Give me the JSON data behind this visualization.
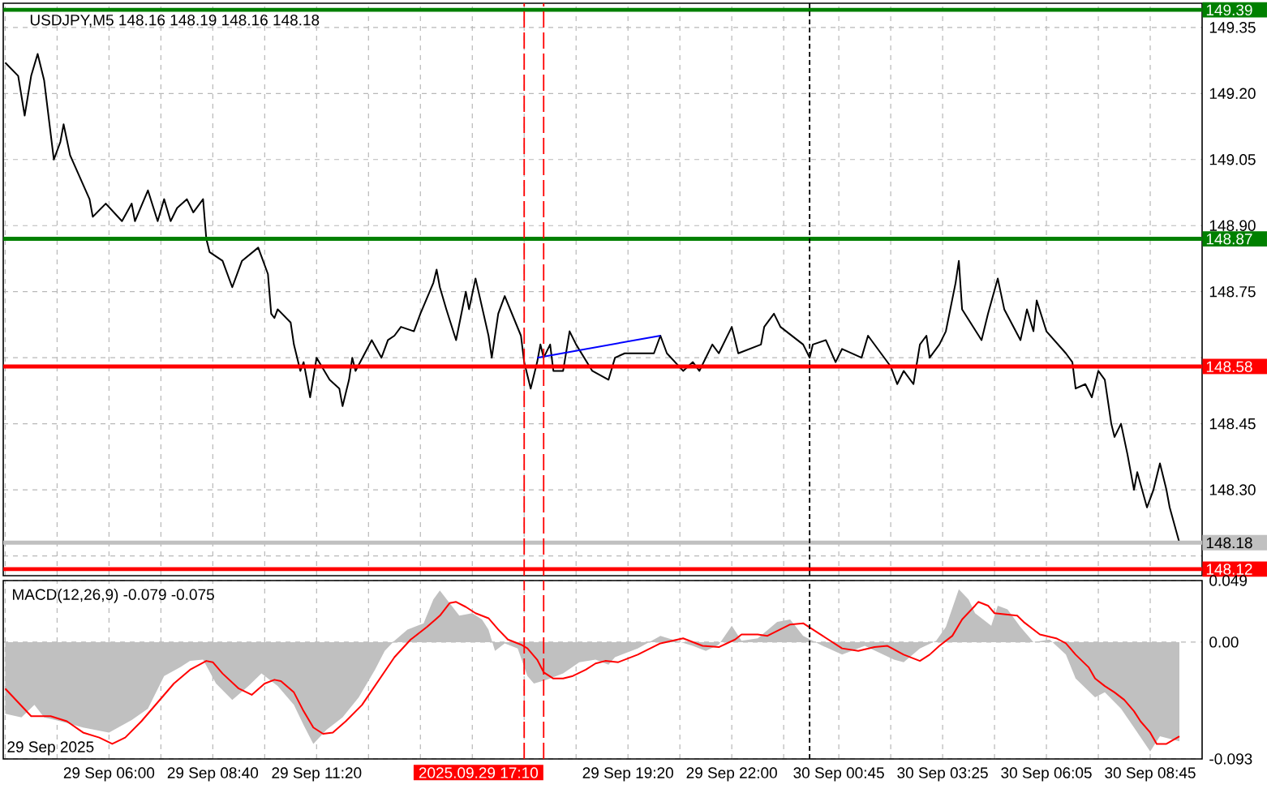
{
  "chart_data": [
    {
      "type": "line",
      "title": "USDJPY,M5 148.16 148.19 148.16 148.18",
      "x": [
        "2025-09-29T03:20",
        "2025-09-29T03:40",
        "2025-09-29T03:50",
        "2025-09-29T04:00",
        "2025-09-29T04:10",
        "2025-09-29T04:20",
        "2025-09-29T04:35",
        "2025-09-29T04:45",
        "2025-09-29T04:50",
        "2025-09-29T05:00",
        "2025-09-29T05:30",
        "2025-09-29T05:35",
        "2025-09-29T05:55",
        "2025-09-29T06:20",
        "2025-09-29T06:35",
        "2025-09-29T06:40",
        "2025-09-29T07:00",
        "2025-09-29T07:15",
        "2025-09-29T07:25",
        "2025-09-29T07:35",
        "2025-09-29T07:45",
        "2025-09-29T08:00",
        "2025-09-29T08:10",
        "2025-09-29T08:25",
        "2025-09-29T08:30",
        "2025-09-29T08:35",
        "2025-09-29T08:55",
        "2025-09-29T09:10",
        "2025-09-29T09:25",
        "2025-09-29T09:50",
        "2025-09-29T10:05",
        "2025-09-29T10:10",
        "2025-09-29T10:15",
        "2025-09-29T10:20",
        "2025-09-29T10:40",
        "2025-09-29T10:45",
        "2025-09-29T10:55",
        "2025-09-29T11:00",
        "2025-09-29T11:05",
        "2025-09-29T11:10",
        "2025-09-29T11:20",
        "2025-09-29T11:40",
        "2025-09-29T11:55",
        "2025-09-29T12:00",
        "2025-09-29T12:10",
        "2025-09-29T12:15",
        "2025-09-29T12:20",
        "2025-09-29T12:45",
        "2025-09-29T13:00",
        "2025-09-29T13:10",
        "2025-09-29T13:20",
        "2025-09-29T13:30",
        "2025-09-29T13:50",
        "2025-09-29T14:00",
        "2025-09-29T14:20",
        "2025-09-29T14:25",
        "2025-09-29T14:30",
        "2025-09-29T14:40",
        "2025-09-29T14:55",
        "2025-09-29T15:10",
        "2025-09-29T15:15",
        "2025-09-29T15:25",
        "2025-09-29T15:45",
        "2025-09-29T15:50",
        "2025-09-29T16:00",
        "2025-09-29T16:10",
        "2025-09-29T16:35",
        "2025-09-29T16:40",
        "2025-09-29T16:50",
        "2025-09-29T17:00",
        "2025-09-29T17:05",
        "2025-09-29T17:10",
        "2025-09-29T17:20",
        "2025-09-29T17:25",
        "2025-09-29T17:40",
        "2025-09-29T17:50",
        "2025-09-29T18:00",
        "2025-09-29T18:25",
        "2025-09-29T18:50",
        "2025-09-29T19:00",
        "2025-09-29T19:15",
        "2025-09-29T20:00",
        "2025-09-29T20:10",
        "2025-09-29T20:20",
        "2025-09-29T20:45",
        "2025-09-29T21:00",
        "2025-09-29T21:10",
        "2025-09-29T21:30",
        "2025-09-29T21:40",
        "2025-09-29T22:00",
        "2025-09-29T22:10",
        "2025-09-29T22:45",
        "2025-09-29T22:50",
        "2025-09-29T23:05",
        "2025-09-29T23:15",
        "2025-09-29T23:50",
        "2025-09-30T00:00",
        "2025-09-30T00:05",
        "2025-09-30T00:25",
        "2025-09-30T00:40",
        "2025-09-30T00:50",
        "2025-09-30T01:20",
        "2025-09-30T01:30",
        "2025-09-30T01:50",
        "2025-09-30T02:05",
        "2025-09-30T02:15",
        "2025-09-30T02:25",
        "2025-09-30T02:40",
        "2025-09-30T02:50",
        "2025-09-30T03:00",
        "2025-09-30T03:05",
        "2025-09-30T03:20",
        "2025-09-30T03:30",
        "2025-09-30T03:45",
        "2025-09-30T03:50",
        "2025-09-30T03:55",
        "2025-09-30T04:25",
        "2025-09-30T04:35",
        "2025-09-30T04:50",
        "2025-09-30T05:00",
        "2025-09-30T05:25",
        "2025-09-30T05:35",
        "2025-09-30T05:45",
        "2025-09-30T05:50",
        "2025-09-30T06:05",
        "2025-09-30T06:35",
        "2025-09-30T06:45",
        "2025-09-30T06:50",
        "2025-09-30T07:05",
        "2025-09-30T07:15",
        "2025-09-30T07:25",
        "2025-09-30T07:35",
        "2025-09-30T07:45",
        "2025-09-30T07:50",
        "2025-09-30T08:00",
        "2025-09-30T08:10",
        "2025-09-30T08:20",
        "2025-09-30T08:25",
        "2025-09-30T08:40",
        "2025-09-30T08:50",
        "2025-09-30T09:00",
        "2025-09-30T09:10",
        "2025-09-30T09:15",
        "2025-09-30T09:30"
      ],
      "series": [
        {
          "color": "#000000",
          "values": [
            149.27,
            149.24,
            149.15,
            149.24,
            149.29,
            149.23,
            149.05,
            149.09,
            149.13,
            149.06,
            148.96,
            148.92,
            148.95,
            148.91,
            148.95,
            148.91,
            148.98,
            148.91,
            148.96,
            148.91,
            148.94,
            148.96,
            148.93,
            148.96,
            148.87,
            148.84,
            148.82,
            148.76,
            148.82,
            148.85,
            148.79,
            148.7,
            148.69,
            148.71,
            148.68,
            148.63,
            148.57,
            148.59,
            148.55,
            148.51,
            148.6,
            148.55,
            148.53,
            148.49,
            148.55,
            148.6,
            148.57,
            148.64,
            148.6,
            148.64,
            148.65,
            148.67,
            148.66,
            148.7,
            148.77,
            148.8,
            148.76,
            148.71,
            148.64,
            148.75,
            148.71,
            148.78,
            148.65,
            148.6,
            148.7,
            148.74,
            148.65,
            148.59,
            148.53,
            148.59,
            148.63,
            148.6,
            148.63,
            148.57,
            148.57,
            148.66,
            148.63,
            148.57,
            148.55,
            148.6,
            148.61,
            148.61,
            148.65,
            148.61,
            148.57,
            148.59,
            148.57,
            148.63,
            148.61,
            148.67,
            148.61,
            148.63,
            148.67,
            148.7,
            148.67,
            148.63,
            148.6,
            148.63,
            148.64,
            148.59,
            148.62,
            148.6,
            148.65,
            148.61,
            148.58,
            148.54,
            148.57,
            148.54,
            148.63,
            148.65,
            148.6,
            148.63,
            148.66,
            148.77,
            148.82,
            148.71,
            148.64,
            148.7,
            148.78,
            148.71,
            148.64,
            148.71,
            148.66,
            148.73,
            148.66,
            148.61,
            148.59,
            148.53,
            148.54,
            148.51,
            148.57,
            148.55,
            148.45,
            148.42,
            148.45,
            148.38,
            148.3,
            148.34,
            148.26,
            148.3,
            148.36,
            148.3,
            148.26,
            148.18
          ]
        },
        {
          "color": "#0000ff",
          "x": [
            "2025-09-29T17:00",
            "2025-09-29T20:10"
          ],
          "values": [
            148.6,
            148.65
          ]
        }
      ],
      "xlim": [
        "2025-09-29T03:17",
        "2025-09-30T10:05"
      ],
      "xticks": [
        "2025-09-29T03:20",
        "2025-09-29T04:40",
        "2025-09-29T06:00",
        "2025-09-29T07:20",
        "2025-09-29T08:40",
        "2025-09-29T10:00",
        "2025-09-29T11:20",
        "2025-09-29T12:40",
        "2025-09-29T14:00",
        "2025-09-29T15:20",
        "2025-09-29T16:40",
        "2025-09-29T18:00",
        "2025-09-29T19:20",
        "2025-09-29T20:40",
        "2025-09-29T22:00",
        "2025-09-29T23:20",
        "2025-09-30T00:45",
        "2025-09-30T02:05",
        "2025-09-30T03:25",
        "2025-09-30T04:45",
        "2025-09-30T06:05",
        "2025-09-30T07:25",
        "2025-09-30T08:45"
      ],
      "ylim": [
        148.105,
        149.405
      ],
      "yticks": [
        149.35,
        {
          "value": 149.2,
          "label": "149.20"
        },
        149.05,
        {
          "value": 148.9,
          "label": "148.90"
        },
        148.75,
        {
          "value": 148.6,
          "label": null
        },
        148.45,
        {
          "value": 148.3,
          "label": "148.30"
        },
        {
          "value": 148.15,
          "label": null
        }
      ],
      "grid": true,
      "tick_labels": "y",
      "ref_lines": [
        {
          "axis": "y",
          "value": 149.39,
          "label": "149.39",
          "color": "#008000"
        },
        {
          "axis": "y",
          "value": 148.87,
          "label": "148.87",
          "color": "#008000"
        },
        {
          "axis": "y",
          "value": 148.58,
          "label": "148.58",
          "color": "#ff0000"
        },
        {
          "axis": "y",
          "value": 148.18,
          "label": "148.18",
          "color": "#c0c0c0"
        },
        {
          "axis": "y",
          "value": 148.12,
          "label": "148.12",
          "color": "#ff0000"
        },
        {
          "axis": "x",
          "value": "2025-09-29T16:40",
          "color": "#ff0000",
          "line_style": "dashed"
        },
        {
          "axis": "x",
          "value": "2025-09-29T17:10",
          "color": "#ff0000",
          "line_style": "dashed"
        },
        {
          "axis": "x",
          "value": "2025-09-30T00:00",
          "color": "#000000",
          "line_style": "dotted"
        }
      ]
    },
    {
      "type": "area",
      "title": "MACD(12,26,9) -0.079 -0.075",
      "annotations": [
        "29 Sep 2025"
      ],
      "x": [
        "2025-09-29T03:20",
        "2025-09-29T03:45",
        "2025-09-29T04:05",
        "2025-09-29T04:20",
        "2025-09-29T04:45",
        "2025-09-29T05:20",
        "2025-09-29T06:00",
        "2025-09-29T06:35",
        "2025-09-29T07:00",
        "2025-09-29T07:25",
        "2025-09-29T07:50",
        "2025-09-29T08:05",
        "2025-09-29T08:25",
        "2025-09-29T08:45",
        "2025-09-29T09:10",
        "2025-09-29T09:35",
        "2025-09-29T09:55",
        "2025-09-29T10:20",
        "2025-09-29T10:45",
        "2025-09-29T11:00",
        "2025-09-29T11:15",
        "2025-09-29T11:35",
        "2025-09-29T12:00",
        "2025-09-29T12:25",
        "2025-09-29T12:50",
        "2025-09-29T13:05",
        "2025-09-29T13:20",
        "2025-09-29T13:40",
        "2025-09-29T14:05",
        "2025-09-29T14:20",
        "2025-09-29T14:30",
        "2025-09-29T14:45",
        "2025-09-29T15:00",
        "2025-09-29T15:20",
        "2025-09-29T15:35",
        "2025-09-29T15:45",
        "2025-09-29T15:55",
        "2025-09-29T16:10",
        "2025-09-29T16:30",
        "2025-09-29T16:45",
        "2025-09-29T16:55",
        "2025-09-29T17:15",
        "2025-09-29T17:40",
        "2025-09-29T18:05",
        "2025-09-29T18:30",
        "2025-09-29T18:50",
        "2025-09-29T19:00",
        "2025-09-29T19:35",
        "2025-09-29T20:10",
        "2025-09-29T21:00",
        "2025-09-29T21:20",
        "2025-09-29T21:40",
        "2025-09-29T22:00",
        "2025-09-29T22:15",
        "2025-09-29T22:40",
        "2025-09-29T23:10",
        "2025-09-29T23:30",
        "2025-09-29T23:50",
        "2025-09-30T00:20",
        "2025-09-30T00:50",
        "2025-09-30T01:25",
        "2025-09-30T02:10",
        "2025-09-30T02:25",
        "2025-09-30T02:50",
        "2025-09-30T03:15",
        "2025-09-30T03:30",
        "2025-09-30T03:50",
        "2025-09-30T04:05",
        "2025-09-30T04:15",
        "2025-09-30T04:40",
        "2025-09-30T04:50",
        "2025-09-30T05:05",
        "2025-09-30T05:25",
        "2025-09-30T05:45",
        "2025-09-30T06:10",
        "2025-09-30T06:35",
        "2025-09-30T06:50",
        "2025-09-30T07:20",
        "2025-09-30T07:35",
        "2025-09-30T08:00",
        "2025-09-30T08:20",
        "2025-09-30T08:45",
        "2025-09-30T09:00",
        "2025-09-30T09:30"
      ],
      "series": [
        {
          "color": "#c0c0c0",
          "values": [
            -0.057,
            -0.06,
            -0.05,
            -0.06,
            -0.063,
            -0.068,
            -0.072,
            -0.062,
            -0.053,
            -0.027,
            -0.02,
            -0.015,
            -0.014,
            -0.033,
            -0.046,
            -0.035,
            -0.025,
            -0.035,
            -0.05,
            -0.066,
            -0.081,
            -0.07,
            -0.06,
            -0.044,
            -0.022,
            -0.007,
            0.001,
            0.01,
            0.015,
            0.034,
            0.041,
            0.031,
            0.021,
            0.023,
            0.018,
            0.01,
            -0.007,
            -0.001,
            -0.005,
            -0.027,
            -0.033,
            -0.03,
            -0.025,
            -0.016,
            -0.014,
            -0.018,
            -0.012,
            -0.005,
            0.005,
            -0.003,
            -0.007,
            -0.002,
            0.013,
            0.001,
            0.003,
            0.016,
            0.018,
            0.005,
            -0.003,
            -0.01,
            -0.003,
            -0.014,
            -0.016,
            -0.005,
            0.001,
            0.012,
            0.042,
            0.034,
            0.023,
            0.013,
            0.029,
            0.026,
            0.012,
            0.0,
            0.002,
            -0.01,
            -0.029,
            -0.044,
            -0.04,
            -0.053,
            -0.068,
            -0.087,
            -0.075,
            -0.079
          ]
        },
        {
          "type": "line",
          "color": "#ff0000",
          "x": [
            "2025-09-29T03:20",
            "2025-09-29T03:40",
            "2025-09-29T04:00",
            "2025-09-29T04:30",
            "2025-09-29T04:55",
            "2025-09-29T05:20",
            "2025-09-29T05:45",
            "2025-09-29T06:05",
            "2025-09-29T06:25",
            "2025-09-29T06:50",
            "2025-09-29T07:15",
            "2025-09-29T07:40",
            "2025-09-29T08:05",
            "2025-09-29T08:30",
            "2025-09-29T08:40",
            "2025-09-29T08:55",
            "2025-09-29T09:20",
            "2025-09-29T09:40",
            "2025-09-29T10:00",
            "2025-09-29T10:15",
            "2025-09-29T10:25",
            "2025-09-29T10:45",
            "2025-09-29T11:00",
            "2025-09-29T11:15",
            "2025-09-29T11:30",
            "2025-09-29T11:45",
            "2025-09-29T12:05",
            "2025-09-29T12:30",
            "2025-09-29T12:55",
            "2025-09-29T13:20",
            "2025-09-29T13:45",
            "2025-09-29T14:10",
            "2025-09-29T14:30",
            "2025-09-29T14:45",
            "2025-09-29T14:55",
            "2025-09-29T15:10",
            "2025-09-29T15:25",
            "2025-09-29T15:45",
            "2025-09-29T16:00",
            "2025-09-29T16:15",
            "2025-09-29T16:35",
            "2025-09-29T16:45",
            "2025-09-29T17:00",
            "2025-09-29T17:10",
            "2025-09-29T17:25",
            "2025-09-29T17:40",
            "2025-09-29T17:55",
            "2025-09-29T18:15",
            "2025-09-29T18:30",
            "2025-09-29T18:45",
            "2025-09-29T19:05",
            "2025-09-29T19:35",
            "2025-09-29T20:10",
            "2025-09-29T20:45",
            "2025-09-29T21:15",
            "2025-09-29T21:40",
            "2025-09-29T22:05",
            "2025-09-29T22:15",
            "2025-09-29T22:40",
            "2025-09-29T22:55",
            "2025-09-29T23:30",
            "2025-09-29T23:50",
            "2025-09-30T00:20",
            "2025-09-30T00:50",
            "2025-09-30T01:15",
            "2025-09-30T01:40",
            "2025-09-30T02:00",
            "2025-09-30T02:25",
            "2025-09-30T02:50",
            "2025-09-30T03:05",
            "2025-09-30T03:20",
            "2025-09-30T03:40",
            "2025-09-30T03:55",
            "2025-09-30T04:15",
            "2025-09-30T04:20",
            "2025-09-30T04:35",
            "2025-09-30T04:45",
            "2025-09-30T05:20",
            "2025-09-30T05:30",
            "2025-09-30T05:55",
            "2025-09-30T06:20",
            "2025-09-30T06:35",
            "2025-09-30T06:50",
            "2025-09-30T07:10",
            "2025-09-30T07:20",
            "2025-09-30T07:35",
            "2025-09-30T07:50",
            "2025-09-30T08:05",
            "2025-09-30T08:20",
            "2025-09-30T08:30",
            "2025-09-30T08:45",
            "2025-09-30T08:55",
            "2025-09-30T09:10",
            "2025-09-30T09:30"
          ],
          "values": [
            -0.037,
            -0.048,
            -0.059,
            -0.059,
            -0.063,
            -0.072,
            -0.076,
            -0.081,
            -0.076,
            -0.063,
            -0.048,
            -0.033,
            -0.022,
            -0.015,
            -0.016,
            -0.025,
            -0.037,
            -0.042,
            -0.033,
            -0.03,
            -0.031,
            -0.04,
            -0.055,
            -0.068,
            -0.073,
            -0.072,
            -0.063,
            -0.05,
            -0.031,
            -0.012,
            0.002,
            0.012,
            0.021,
            0.031,
            0.032,
            0.028,
            0.023,
            0.019,
            0.01,
            0.002,
            -0.002,
            -0.005,
            -0.014,
            -0.024,
            -0.029,
            -0.029,
            -0.027,
            -0.022,
            -0.017,
            -0.015,
            -0.016,
            -0.01,
            -0.001,
            0.003,
            -0.003,
            -0.004,
            0.002,
            0.006,
            0.006,
            0.005,
            0.014,
            0.015,
            0.005,
            -0.005,
            -0.007,
            -0.004,
            -0.003,
            -0.01,
            -0.015,
            -0.01,
            -0.003,
            0.005,
            0.018,
            0.029,
            0.032,
            0.029,
            0.023,
            0.021,
            0.016,
            0.006,
            0.003,
            -0.001,
            -0.01,
            -0.02,
            -0.029,
            -0.035,
            -0.04,
            -0.046,
            -0.055,
            -0.063,
            -0.072,
            -0.081,
            -0.081,
            -0.075
          ]
        }
      ],
      "xlim": [
        "2025-09-29T03:17",
        "2025-09-30T10:05"
      ],
      "xticks": [
        {
          "value": "2025-09-29T03:20",
          "label": null
        },
        {
          "value": "2025-09-29T04:40",
          "label": null
        },
        {
          "value": "2025-09-29T06:00",
          "label": "29 Sep 06:00"
        },
        {
          "value": "2025-09-29T07:20",
          "label": null
        },
        {
          "value": "2025-09-29T08:40",
          "label": "29 Sep 08:40"
        },
        {
          "value": "2025-09-29T10:00",
          "label": null
        },
        {
          "value": "2025-09-29T11:20",
          "label": "29 Sep 11:20"
        },
        {
          "value": "2025-09-29T12:40",
          "label": null
        },
        {
          "value": "2025-09-29T14:00",
          "label": null
        },
        {
          "value": "2025-09-29T15:20",
          "label": null
        },
        {
          "value": "2025-09-29T16:40",
          "label": null
        },
        {
          "value": "2025-09-29T18:00",
          "label": null
        },
        {
          "value": "2025-09-29T19:20",
          "label": "29 Sep 19:20"
        },
        {
          "value": "2025-09-29T20:40",
          "label": null
        },
        {
          "value": "2025-09-29T22:00",
          "label": "29 Sep 22:00"
        },
        {
          "value": "2025-09-29T23:20",
          "label": null
        },
        {
          "value": "2025-09-30T00:45",
          "label": "30 Sep 00:45"
        },
        {
          "value": "2025-09-30T02:05",
          "label": null
        },
        {
          "value": "2025-09-30T03:25",
          "label": "30 Sep 03:25"
        },
        {
          "value": "2025-09-30T04:45",
          "label": null
        },
        {
          "value": "2025-09-30T06:05",
          "label": "30 Sep 06:05"
        },
        {
          "value": "2025-09-30T07:25",
          "label": null
        },
        {
          "value": "2025-09-30T08:45",
          "label": "30 Sep 08:45"
        }
      ],
      "ylim": [
        -0.093,
        0.049
      ],
      "yticks": [
        0.049,
        {
          "value": 0,
          "label": "0.00"
        },
        -0.093
      ],
      "grid": true,
      "ref_lines": [
        {
          "axis": "x",
          "value": "2025-09-29T16:40",
          "color": "#ff0000",
          "line_style": "dashed"
        },
        {
          "axis": "x",
          "value": "2025-09-29T17:10",
          "label": "2025.09.29 17:10",
          "color": "#ff0000",
          "line_style": "dashed"
        },
        {
          "axis": "x",
          "value": "2025-09-30T00:00",
          "color": "#000000",
          "line_style": "dotted"
        }
      ]
    }
  ]
}
